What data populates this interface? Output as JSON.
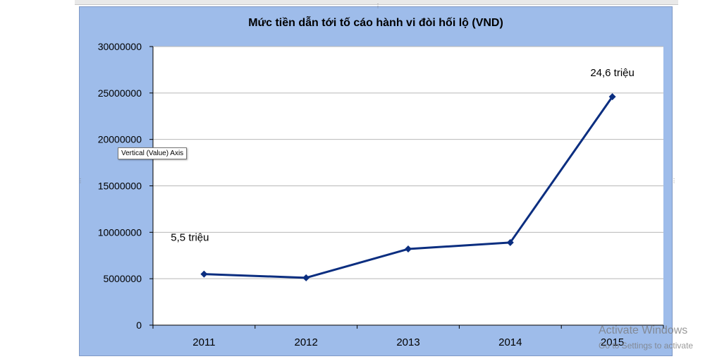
{
  "chart_data": {
    "type": "line",
    "title": "Mức tiền dẫn tới tố cáo hành vi đòi hối lộ (VND)",
    "xlabel": "",
    "ylabel": "",
    "categories": [
      "2011",
      "2012",
      "2013",
      "2014",
      "2015"
    ],
    "series": [
      {
        "values": [
          5500000,
          5100000,
          8200000,
          8900000,
          24600000
        ]
      }
    ],
    "ylim": [
      0,
      30000000
    ],
    "yticks": [
      "0",
      "5000000",
      "10000000",
      "15000000",
      "20000000",
      "25000000",
      "30000000"
    ],
    "annotations": [
      {
        "category": "2011",
        "text": "5,5 triệu"
      },
      {
        "category": "2015",
        "text": "24,6 triệu"
      }
    ],
    "grid": true,
    "legend": "none",
    "colors": {
      "line": "#0b2e80",
      "marker": "#0b2e80",
      "frame": "#9ebcea",
      "plot": "#ffffff",
      "grid": "#b8b8b8"
    }
  },
  "tooltip": {
    "text": "Vertical (Value) Axis"
  },
  "watermark": {
    "line1": "Activate Windows",
    "line2": "Go to Settings to activate"
  }
}
